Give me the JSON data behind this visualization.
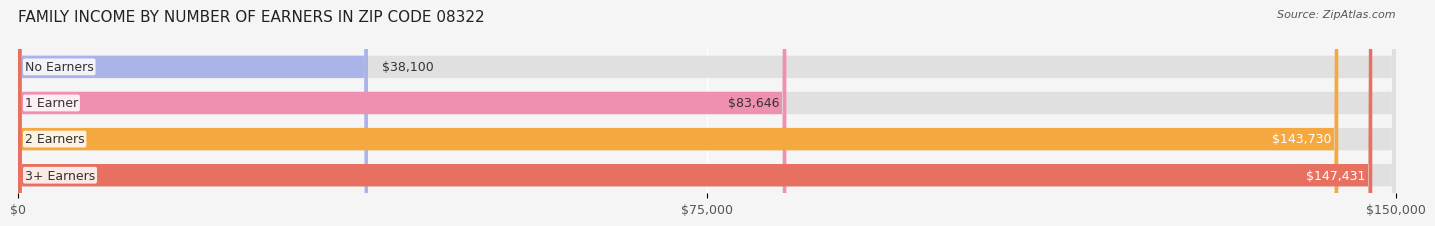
{
  "title": "FAMILY INCOME BY NUMBER OF EARNERS IN ZIP CODE 08322",
  "source": "Source: ZipAtlas.com",
  "categories": [
    "No Earners",
    "1 Earner",
    "2 Earners",
    "3+ Earners"
  ],
  "values": [
    38100,
    83646,
    143730,
    147431
  ],
  "bar_colors": [
    "#aab4e8",
    "#f090b0",
    "#f5a840",
    "#e87060"
  ],
  "bar_bg_color": "#e8e8e8",
  "value_labels": [
    "$38,100",
    "$83,646",
    "$143,730",
    "$147,431"
  ],
  "x_max": 150000,
  "x_ticks": [
    0,
    75000,
    150000
  ],
  "x_tick_labels": [
    "$0",
    "$75,000",
    "$150,000"
  ],
  "background_color": "#f5f5f5",
  "title_fontsize": 11,
  "source_fontsize": 8,
  "label_fontsize": 9,
  "value_fontsize": 9,
  "tick_fontsize": 9
}
